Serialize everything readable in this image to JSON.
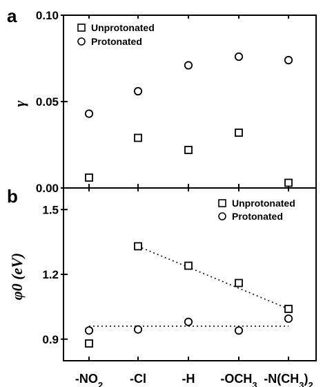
{
  "chart_data": [
    {
      "panel": "a",
      "type": "scatter",
      "ylabel": "γ",
      "ylim": [
        0,
        0.1
      ],
      "yticks": [
        "0.00",
        "0.05",
        "0.10"
      ],
      "categories": [
        "-NO2",
        "-Cl",
        "-H",
        "-OCH3",
        "-N(CH3)2"
      ],
      "legend": {
        "position": "top-left"
      },
      "series": [
        {
          "name": "Unprotonated",
          "marker": "square",
          "values": [
            0.006,
            0.029,
            0.022,
            0.032,
            0.003
          ]
        },
        {
          "name": "Protonated",
          "marker": "circle",
          "values": [
            0.043,
            0.056,
            0.071,
            0.076,
            0.074
          ]
        }
      ]
    },
    {
      "panel": "b",
      "type": "scatter",
      "ylabel": "φ0 (eV)",
      "ylim": [
        0.8,
        1.6
      ],
      "yticks": [
        "0.9",
        "1.2",
        "1.5"
      ],
      "categories": [
        "-NO2",
        "-Cl",
        "-H",
        "-OCH3",
        "-N(CH3)2"
      ],
      "legend": {
        "position": "top-right"
      },
      "series": [
        {
          "name": "Unprotonated",
          "marker": "square",
          "values": [
            0.88,
            1.33,
            1.24,
            1.16,
            1.04
          ]
        },
        {
          "name": "Protonated",
          "marker": "circle",
          "values": [
            0.94,
            0.945,
            0.98,
            0.94,
            0.995
          ]
        }
      ],
      "fit_lines": [
        {
          "series": "Unprotonated",
          "from_category": 1,
          "to_category": 4,
          "y_start": 1.33,
          "y_end": 1.04
        },
        {
          "series": "Protonated",
          "from_category": 0,
          "to_category": 4,
          "y_start": 0.96,
          "y_end": 0.96
        }
      ]
    }
  ]
}
